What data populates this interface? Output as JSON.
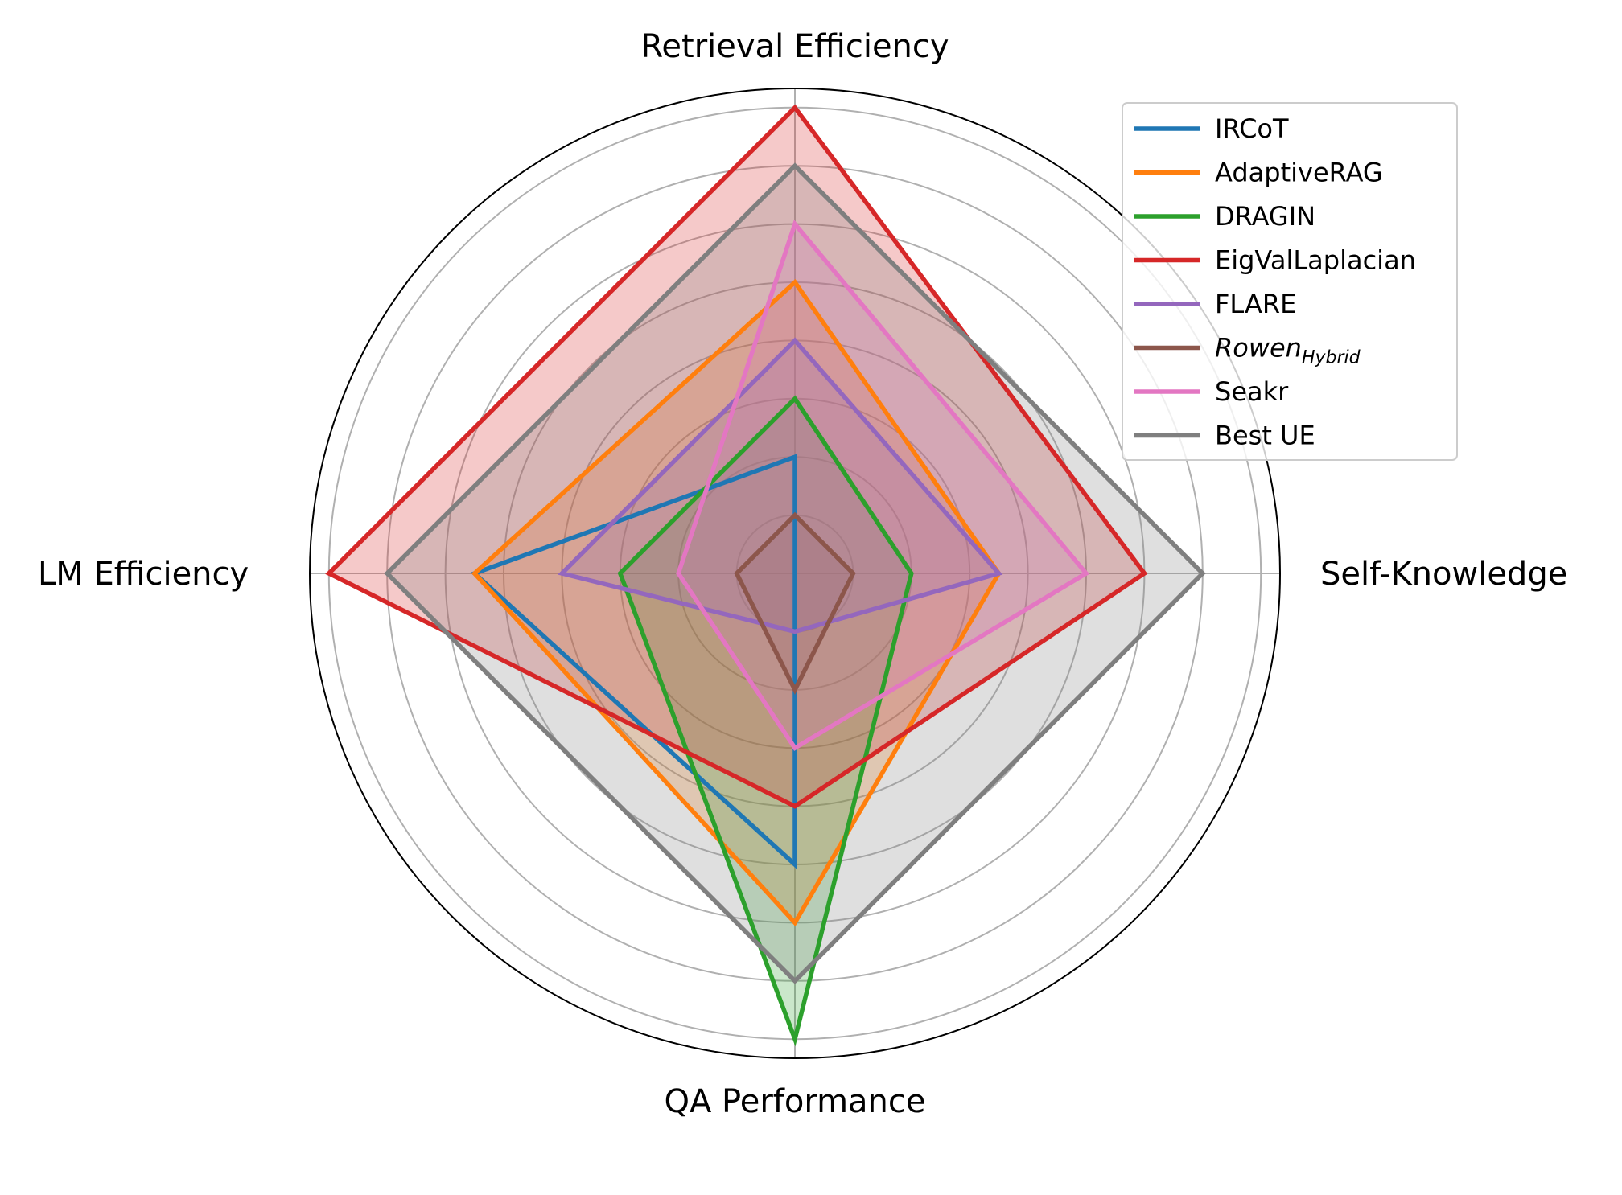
{
  "chart_data": {
    "type": "radar",
    "axes": [
      "Retrieval Efficiency",
      "Self-Knowledge",
      "QA Performance",
      "LM Efficiency"
    ],
    "rmax": 8,
    "rings": [
      1,
      2,
      3,
      4,
      5,
      6,
      7,
      8
    ],
    "grid": true,
    "legend": "top-right",
    "series": [
      {
        "name": "IRCoT",
        "color": "#1f77b4",
        "values": [
          2,
          0,
          5,
          5.5
        ],
        "fill": false
      },
      {
        "name": "AdaptiveRAG",
        "color": "#ff7f0e",
        "values": [
          5,
          3.5,
          6,
          5.5
        ],
        "fill": true
      },
      {
        "name": "DRAGIN",
        "color": "#2ca02c",
        "values": [
          3,
          2,
          8,
          3
        ],
        "fill": true
      },
      {
        "name": "EigValLaplacian",
        "color": "#d62728",
        "values": [
          8,
          6,
          4,
          8
        ],
        "fill": true
      },
      {
        "name": "FLARE",
        "color": "#9467bd",
        "values": [
          4,
          3.5,
          1,
          4
        ],
        "fill": true
      },
      {
        "name": "Rowen",
        "name_sub": "Hybrid",
        "color": "#8c564b",
        "values": [
          1,
          1,
          2,
          1
        ],
        "fill": true
      },
      {
        "name": "Seakr",
        "color": "#e377c2",
        "values": [
          6,
          5,
          3,
          2
        ],
        "fill": true
      },
      {
        "name": "Best UE",
        "color": "#7f7f7f",
        "values": [
          7,
          7,
          7,
          7
        ],
        "fill": true
      }
    ]
  }
}
